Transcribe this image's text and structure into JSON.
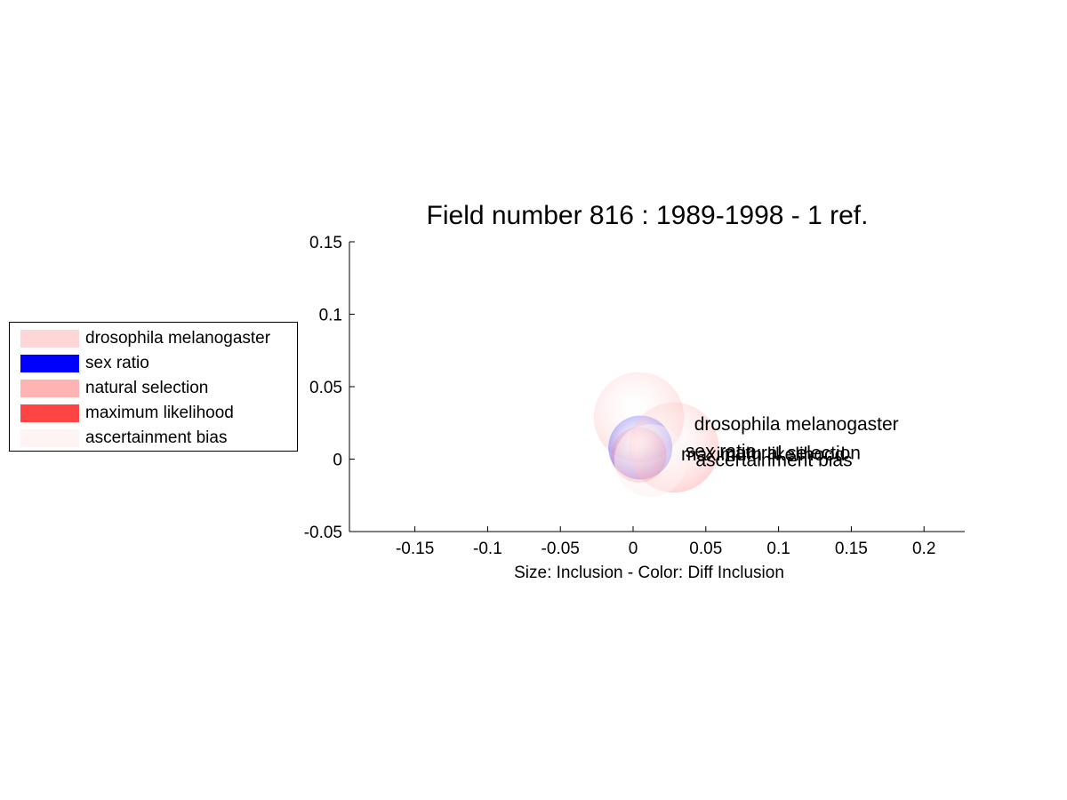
{
  "chart_data": {
    "type": "scatter",
    "title": "Field number 816 : 1989-1998  - 1 ref.",
    "xlabel": "Size: Inclusion - Color: Diff Inclusion",
    "ylabel": "",
    "xlim": [
      -0.195,
      0.228
    ],
    "ylim": [
      -0.05,
      0.15
    ],
    "xticks": [
      "-0.15",
      "-0.1",
      "-0.05",
      "0",
      "0.05",
      "0.1",
      "0.15",
      "0.2"
    ],
    "yticks": [
      "-0.05",
      "0",
      "0.05",
      "0.1",
      "0.15"
    ],
    "grid": false,
    "legend_position": "left",
    "series": [
      {
        "name": "drosophila melanogaster",
        "x": 0.004,
        "y": 0.029,
        "radius": 0.031,
        "color": "#ff9999",
        "alpha": 0.35,
        "label_x": 0.042,
        "label_y": 0.025
      },
      {
        "name": "sex ratio",
        "x": 0.005,
        "y": 0.008,
        "radius": 0.022,
        "color": "#0000ff",
        "alpha": 0.5,
        "label_x": 0.036,
        "label_y": 0.006
      },
      {
        "name": "natural selection",
        "x": 0.028,
        "y": 0.008,
        "radius": 0.031,
        "color": "#ff9999",
        "alpha": 0.45,
        "label_x": 0.063,
        "label_y": 0.005
      },
      {
        "name": "maximum likelihood",
        "x": 0.004,
        "y": 0.003,
        "radius": 0.019,
        "color": "#ff3333",
        "alpha": 0.35,
        "label_x": 0.033,
        "label_y": 0.004
      },
      {
        "name": "ascertainment bias",
        "x": 0.012,
        "y": -0.001,
        "radius": 0.025,
        "color": "#ffeeee",
        "alpha": 0.6,
        "label_x": 0.043,
        "label_y": 0.0
      }
    ]
  },
  "legend": {
    "items": [
      {
        "label": "drosophila melanogaster",
        "color": "#ffd6d6"
      },
      {
        "label": "sex ratio",
        "color": "#0000ff"
      },
      {
        "label": "natural selection",
        "color": "#ffb3b3"
      },
      {
        "label": "maximum likelihood",
        "color": "#ff4444"
      },
      {
        "label": "ascertainment bias",
        "color": "#fff4f4"
      }
    ]
  }
}
